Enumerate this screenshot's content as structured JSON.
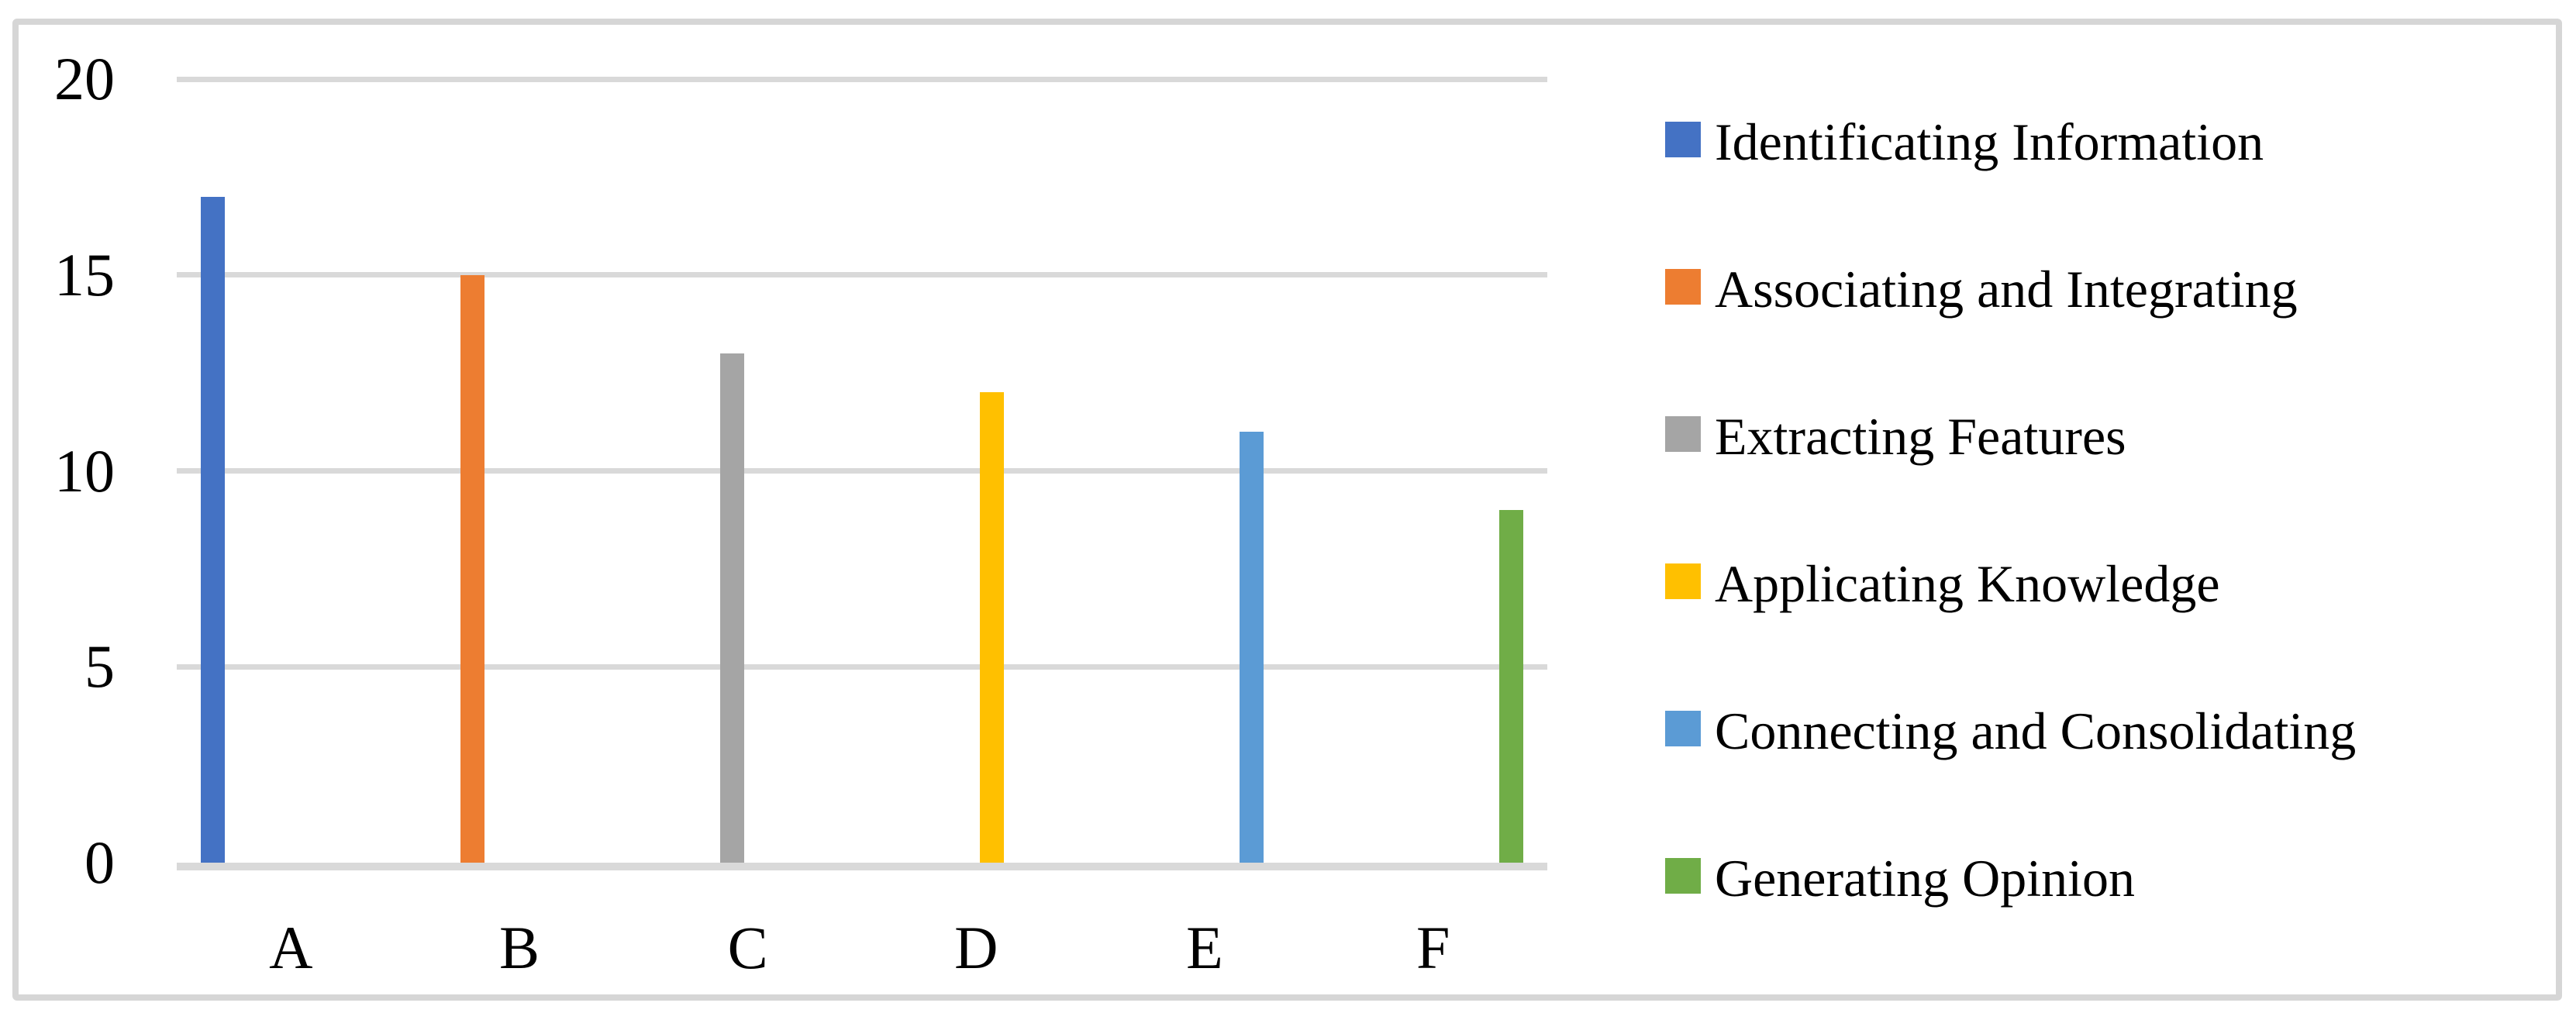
{
  "figure": {
    "background": "#FFFFFF",
    "border_color": "#D6D6D6"
  },
  "chart_data": {
    "type": "bar",
    "title": "",
    "xlabel": "",
    "ylabel": "",
    "categories": [
      "A",
      "B",
      "C",
      "D",
      "E",
      "F"
    ],
    "series": [
      {
        "name": "Identificating Information",
        "color": "#4472C4",
        "category": "A",
        "value": 17
      },
      {
        "name": "Associating and Integrating",
        "color": "#ED7D31",
        "category": "B",
        "value": 15
      },
      {
        "name": "Extracting Features",
        "color": "#A5A5A5",
        "category": "C",
        "value": 13
      },
      {
        "name": "Applicating Knowledge",
        "color": "#FFC000",
        "category": "D",
        "value": 12
      },
      {
        "name": "Connecting and Consolidating",
        "color": "#5B9BD5",
        "category": "E",
        "value": 11
      },
      {
        "name": "Generating Opinion",
        "color": "#70AD47",
        "category": "F",
        "value": 9
      }
    ],
    "ylim": [
      0,
      20
    ],
    "yticks": [
      0,
      5,
      10,
      15,
      20
    ],
    "grid": true,
    "gridline_color": "#D9D9D9",
    "axis_line_color": "#D9D9D9",
    "legend_position": "right"
  }
}
